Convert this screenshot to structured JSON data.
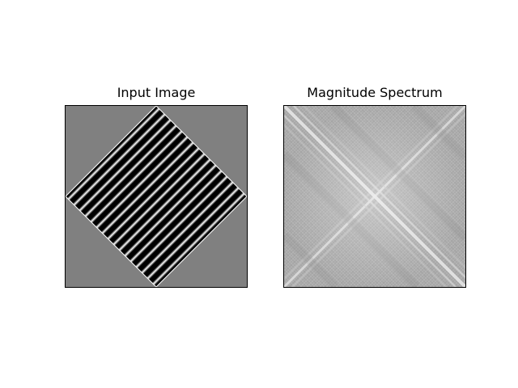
{
  "figure": {
    "panels": [
      {
        "title": "Input Image"
      },
      {
        "title": "Magnitude Spectrum"
      }
    ]
  },
  "colors": {
    "background": "#ffffff",
    "input_background_gray": "#808080",
    "stripe_dark": "#000000",
    "stripe_light": "#ffffff",
    "spectrum_base_gray": "#b4b4b4"
  }
}
